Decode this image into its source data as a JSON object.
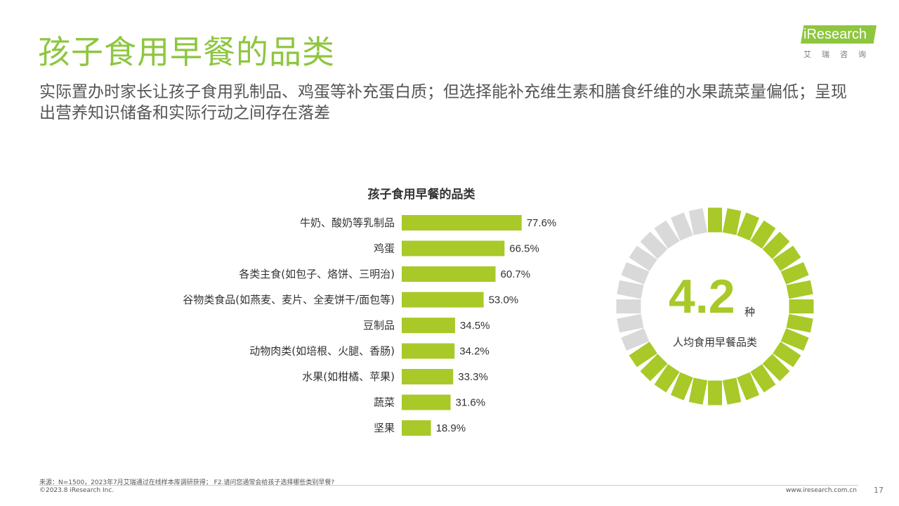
{
  "header": {
    "title": "孩子食用早餐的品类",
    "subtitle": "实际置办时家长让孩子食用乳制品、鸡蛋等补充蛋白质；但选择能补充维生素和膳食纤维的水果蔬菜量偏低；呈现出营养知识储备和实际行动之间存在落差"
  },
  "logo": {
    "text": "iResearch",
    "sub": "艾瑞咨询"
  },
  "chart_data": [
    {
      "type": "bar",
      "orientation": "horizontal",
      "title": "孩子食用早餐的品类",
      "categories": [
        "牛奶、酸奶等乳制品",
        "鸡蛋",
        "各类主食(如包子、烙饼、三明治)",
        "谷物类食品(如燕麦、麦片、全麦饼干/面包等)",
        "豆制品",
        "动物肉类(如培根、火腿、香肠)",
        "水果(如柑橘、苹果)",
        "蔬菜",
        "坚果"
      ],
      "values": [
        77.6,
        66.5,
        60.7,
        53.0,
        34.5,
        34.2,
        33.3,
        31.6,
        18.9
      ],
      "value_labels": [
        "77.6%",
        "66.5%",
        "60.7%",
        "53.0%",
        "34.5%",
        "34.2%",
        "33.3%",
        "31.6%",
        "18.9%"
      ],
      "unit": "%",
      "xlim": [
        0,
        100
      ],
      "bar_color": "#a8c928",
      "grid": false,
      "legend": "none"
    },
    {
      "type": "gauge",
      "value": 4.2,
      "value_text": "4.2",
      "unit": "种",
      "label": "人均食用早餐品类",
      "total_segments": 32,
      "filled_segments": 22,
      "filled_color": "#a8c928",
      "empty_color": "#d9d9d9"
    }
  ],
  "footer": {
    "source": "来源：N=1500，2023年7月艾瑞通过在线样本库调研获得； F2.请问您通常会给孩子选择哪些类别早餐?",
    "copyright": "©2023.8 iResearch Inc.",
    "website": "www.iresearch.com.cn",
    "page": "17"
  }
}
